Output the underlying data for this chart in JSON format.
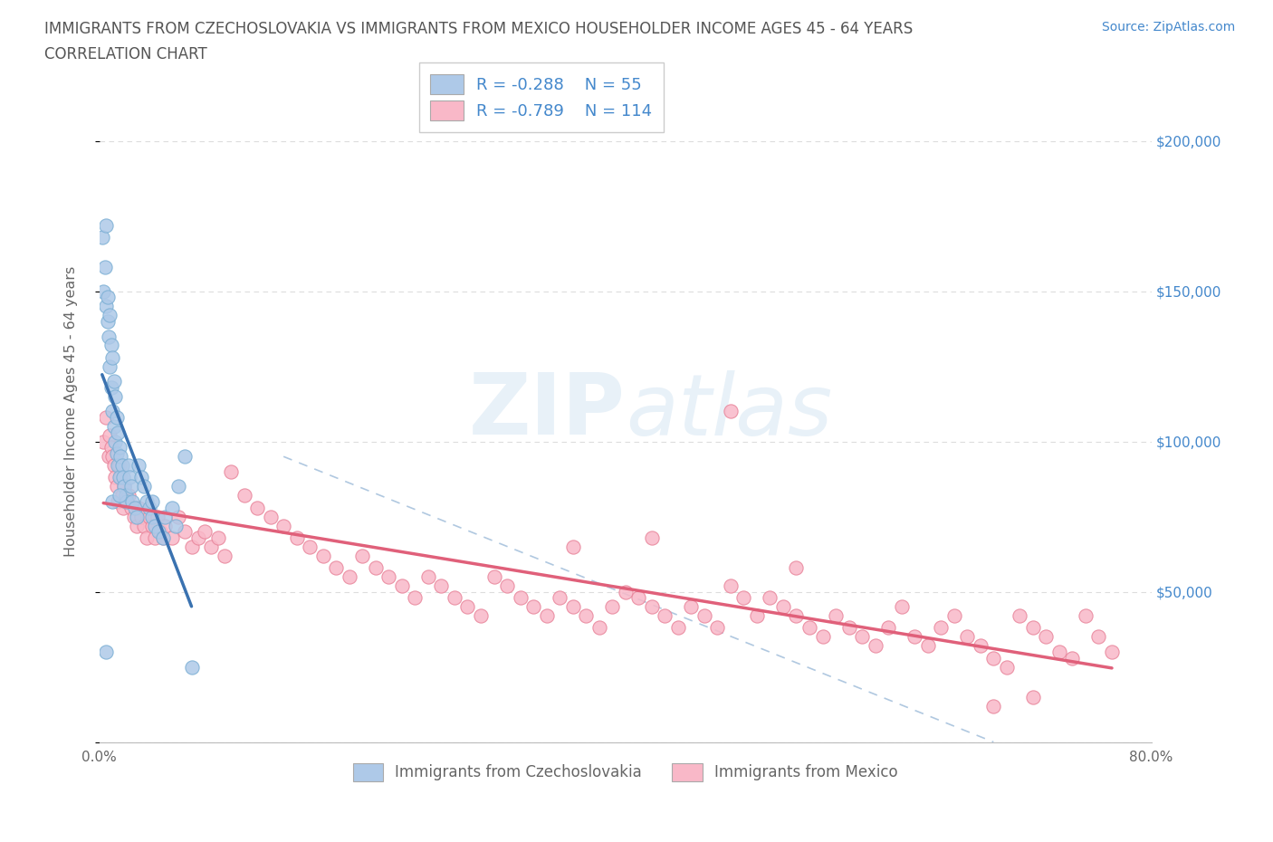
{
  "title_line1": "IMMIGRANTS FROM CZECHOSLOVAKIA VS IMMIGRANTS FROM MEXICO HOUSEHOLDER INCOME AGES 45 - 64 YEARS",
  "title_line2": "CORRELATION CHART",
  "source_text": "Source: ZipAtlas.com",
  "ylabel": "Householder Income Ages 45 - 64 years",
  "xlim": [
    0.0,
    0.8
  ],
  "ylim": [
    0,
    220000
  ],
  "yticks": [
    0,
    50000,
    100000,
    150000,
    200000
  ],
  "xticks": [
    0.0,
    0.1,
    0.2,
    0.3,
    0.4,
    0.5,
    0.6,
    0.7,
    0.8
  ],
  "blue_color": "#aec9e8",
  "blue_edge_color": "#7bafd4",
  "pink_color": "#f9b8c8",
  "pink_edge_color": "#e8849a",
  "blue_line_color": "#3a72b0",
  "pink_line_color": "#e0607a",
  "dashed_line_color": "#b0c8e0",
  "legend_r1": "-0.288",
  "legend_n1": "55",
  "legend_r2": "-0.789",
  "legend_n2": "114",
  "legend_label1": "Immigrants from Czechoslovakia",
  "legend_label2": "Immigrants from Mexico",
  "title_color": "#555555",
  "axis_label_color": "#4488cc",
  "source_color": "#4488cc",
  "R1": -0.288,
  "N1": 55,
  "R2": -0.789,
  "N2": 114,
  "blue_x": [
    0.002,
    0.003,
    0.004,
    0.005,
    0.005,
    0.006,
    0.006,
    0.007,
    0.008,
    0.008,
    0.009,
    0.009,
    0.01,
    0.01,
    0.011,
    0.011,
    0.012,
    0.012,
    0.013,
    0.013,
    0.014,
    0.014,
    0.015,
    0.015,
    0.016,
    0.017,
    0.018,
    0.019,
    0.02,
    0.021,
    0.022,
    0.023,
    0.024,
    0.025,
    0.027,
    0.028,
    0.03,
    0.032,
    0.034,
    0.036,
    0.038,
    0.04,
    0.042,
    0.045,
    0.048,
    0.05,
    0.055,
    0.058,
    0.06,
    0.065,
    0.01,
    0.015,
    0.04,
    0.07,
    0.005
  ],
  "blue_y": [
    168000,
    150000,
    158000,
    172000,
    145000,
    148000,
    140000,
    135000,
    142000,
    125000,
    132000,
    118000,
    128000,
    110000,
    120000,
    105000,
    115000,
    100000,
    108000,
    96000,
    103000,
    92000,
    98000,
    88000,
    95000,
    92000,
    88000,
    85000,
    82000,
    80000,
    92000,
    88000,
    85000,
    80000,
    78000,
    75000,
    92000,
    88000,
    85000,
    80000,
    78000,
    75000,
    72000,
    70000,
    68000,
    75000,
    78000,
    72000,
    85000,
    95000,
    80000,
    82000,
    80000,
    25000,
    30000
  ],
  "pink_x": [
    0.003,
    0.005,
    0.007,
    0.008,
    0.009,
    0.01,
    0.011,
    0.012,
    0.013,
    0.014,
    0.015,
    0.016,
    0.017,
    0.018,
    0.019,
    0.02,
    0.022,
    0.024,
    0.026,
    0.028,
    0.03,
    0.032,
    0.034,
    0.036,
    0.038,
    0.04,
    0.042,
    0.044,
    0.046,
    0.048,
    0.05,
    0.055,
    0.06,
    0.065,
    0.07,
    0.075,
    0.08,
    0.085,
    0.09,
    0.095,
    0.1,
    0.11,
    0.12,
    0.13,
    0.14,
    0.15,
    0.16,
    0.17,
    0.18,
    0.19,
    0.2,
    0.21,
    0.22,
    0.23,
    0.24,
    0.25,
    0.26,
    0.27,
    0.28,
    0.29,
    0.3,
    0.31,
    0.32,
    0.33,
    0.34,
    0.35,
    0.36,
    0.37,
    0.38,
    0.39,
    0.4,
    0.41,
    0.42,
    0.43,
    0.44,
    0.45,
    0.46,
    0.47,
    0.48,
    0.49,
    0.5,
    0.51,
    0.52,
    0.53,
    0.54,
    0.55,
    0.56,
    0.57,
    0.58,
    0.59,
    0.6,
    0.61,
    0.62,
    0.63,
    0.64,
    0.65,
    0.66,
    0.67,
    0.68,
    0.69,
    0.7,
    0.71,
    0.72,
    0.73,
    0.74,
    0.75,
    0.76,
    0.77,
    0.42,
    0.53,
    0.48,
    0.36,
    0.68,
    0.71
  ],
  "pink_y": [
    100000,
    108000,
    95000,
    102000,
    98000,
    95000,
    92000,
    88000,
    85000,
    80000,
    92000,
    88000,
    82000,
    78000,
    85000,
    80000,
    82000,
    78000,
    75000,
    72000,
    78000,
    75000,
    72000,
    68000,
    75000,
    72000,
    68000,
    75000,
    70000,
    68000,
    72000,
    68000,
    75000,
    70000,
    65000,
    68000,
    70000,
    65000,
    68000,
    62000,
    90000,
    82000,
    78000,
    75000,
    72000,
    68000,
    65000,
    62000,
    58000,
    55000,
    62000,
    58000,
    55000,
    52000,
    48000,
    55000,
    52000,
    48000,
    45000,
    42000,
    55000,
    52000,
    48000,
    45000,
    42000,
    48000,
    45000,
    42000,
    38000,
    45000,
    50000,
    48000,
    45000,
    42000,
    38000,
    45000,
    42000,
    38000,
    52000,
    48000,
    42000,
    48000,
    45000,
    42000,
    38000,
    35000,
    42000,
    38000,
    35000,
    32000,
    38000,
    45000,
    35000,
    32000,
    38000,
    42000,
    35000,
    32000,
    28000,
    25000,
    42000,
    38000,
    35000,
    30000,
    28000,
    42000,
    35000,
    30000,
    68000,
    58000,
    110000,
    65000,
    12000,
    15000
  ]
}
